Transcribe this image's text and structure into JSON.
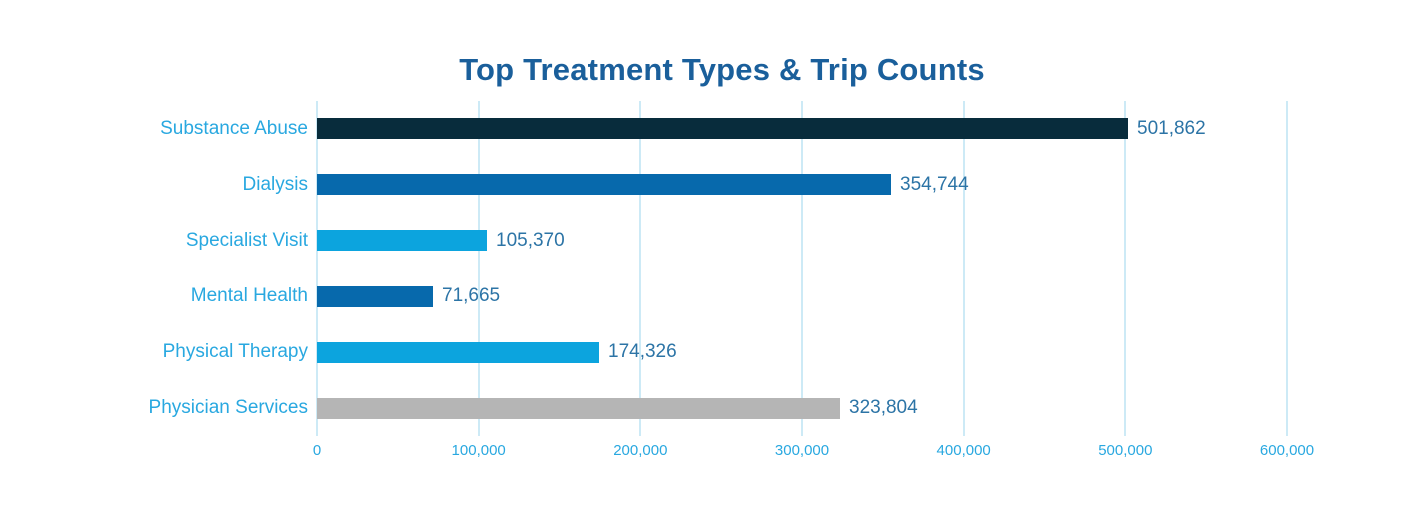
{
  "page": {
    "background": "#ffffff"
  },
  "chart_data": {
    "type": "bar",
    "orientation": "horizontal",
    "title": "Top Treatment Types & Trip Counts",
    "categories": [
      "Substance Abuse",
      "Dialysis",
      "Specialist Visit",
      "Mental Health",
      "Physical Therapy",
      "Physician Services"
    ],
    "values": [
      501862,
      354744,
      105370,
      71665,
      174326,
      323804
    ],
    "value_labels": [
      "501,862",
      "354,744",
      "105,370",
      "71,665",
      "174,326",
      "323,804"
    ],
    "bar_colors": [
      "#082c3c",
      "#0769ac",
      "#0ca4de",
      "#0769ac",
      "#0ca4de",
      "#b5b5b5"
    ],
    "xlabel": "",
    "ylabel": "",
    "xlim": [
      0,
      600000
    ],
    "x_ticks": [
      0,
      100000,
      200000,
      300000,
      400000,
      500000,
      600000
    ],
    "x_tick_labels": [
      "0",
      "100,000",
      "200,000",
      "300,000",
      "400,000",
      "500,000",
      "600,000"
    ],
    "grid": true,
    "legend": false,
    "colors": {
      "title": "#1a5f9b",
      "category_label": "#29a8e0",
      "value_label": "#2c74a6",
      "tick_label": "#29a8e0",
      "gridline": "#cdeaf6"
    }
  }
}
